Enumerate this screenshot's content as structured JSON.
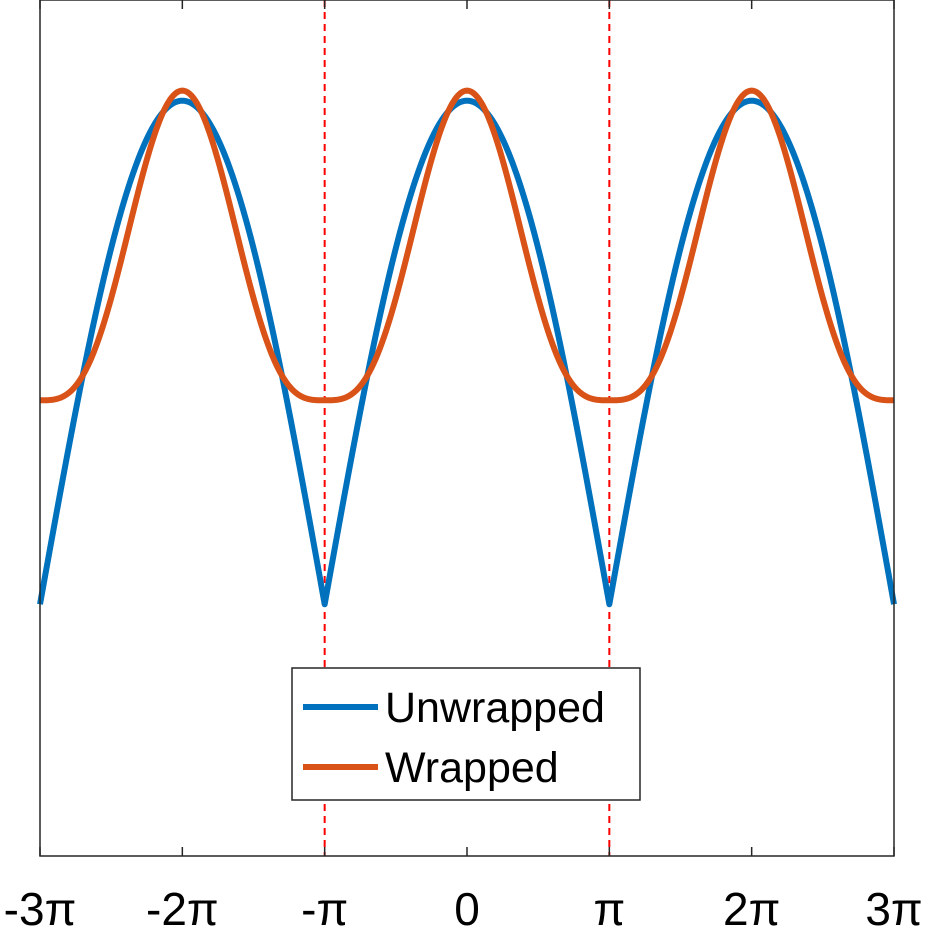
{
  "chart_data": {
    "type": "line",
    "title": "",
    "xlabel": "",
    "ylabel": "",
    "xlim": [
      -9.42478,
      9.42478
    ],
    "ylim": [
      -2.0,
      1.4
    ],
    "xticks": [
      {
        "value": -9.42478,
        "label": "-3π"
      },
      {
        "value": -6.28319,
        "label": "-2π"
      },
      {
        "value": -3.14159,
        "label": "-π"
      },
      {
        "value": 0,
        "label": "0"
      },
      {
        "value": 3.14159,
        "label": "π"
      },
      {
        "value": 6.28319,
        "label": "2π"
      },
      {
        "value": 9.42478,
        "label": "3π"
      }
    ],
    "yticks_shown": false,
    "grid": false,
    "legend_position": "bottom-center",
    "vertical_reference_lines": [
      {
        "x": -3.14159,
        "color": "#ff0000",
        "style": "dashed"
      },
      {
        "x": 3.14159,
        "color": "#ff0000",
        "style": "dashed"
      }
    ],
    "series": [
      {
        "name": "Unwrapped",
        "color": "#0072bd",
        "sample_points": [
          {
            "x": -9.42478,
            "y": -1.0
          },
          {
            "x": -6.28319,
            "y": 1.0
          },
          {
            "x": -3.14159,
            "y": -1.0
          },
          {
            "x": 0,
            "y": 1.0
          },
          {
            "x": 3.14159,
            "y": -1.0
          },
          {
            "x": 6.28319,
            "y": 1.0
          },
          {
            "x": 9.42478,
            "y": -1.0
          }
        ]
      },
      {
        "name": "Wrapped",
        "color": "#d95319",
        "sample_points": [
          {
            "x": -9.42478,
            "y": -0.19
          },
          {
            "x": -6.28319,
            "y": 1.04
          },
          {
            "x": -3.14159,
            "y": -0.19
          },
          {
            "x": 0,
            "y": 1.04
          },
          {
            "x": 3.14159,
            "y": -0.19
          },
          {
            "x": 6.28319,
            "y": 1.04
          },
          {
            "x": 9.42478,
            "y": -0.19
          }
        ]
      }
    ]
  }
}
